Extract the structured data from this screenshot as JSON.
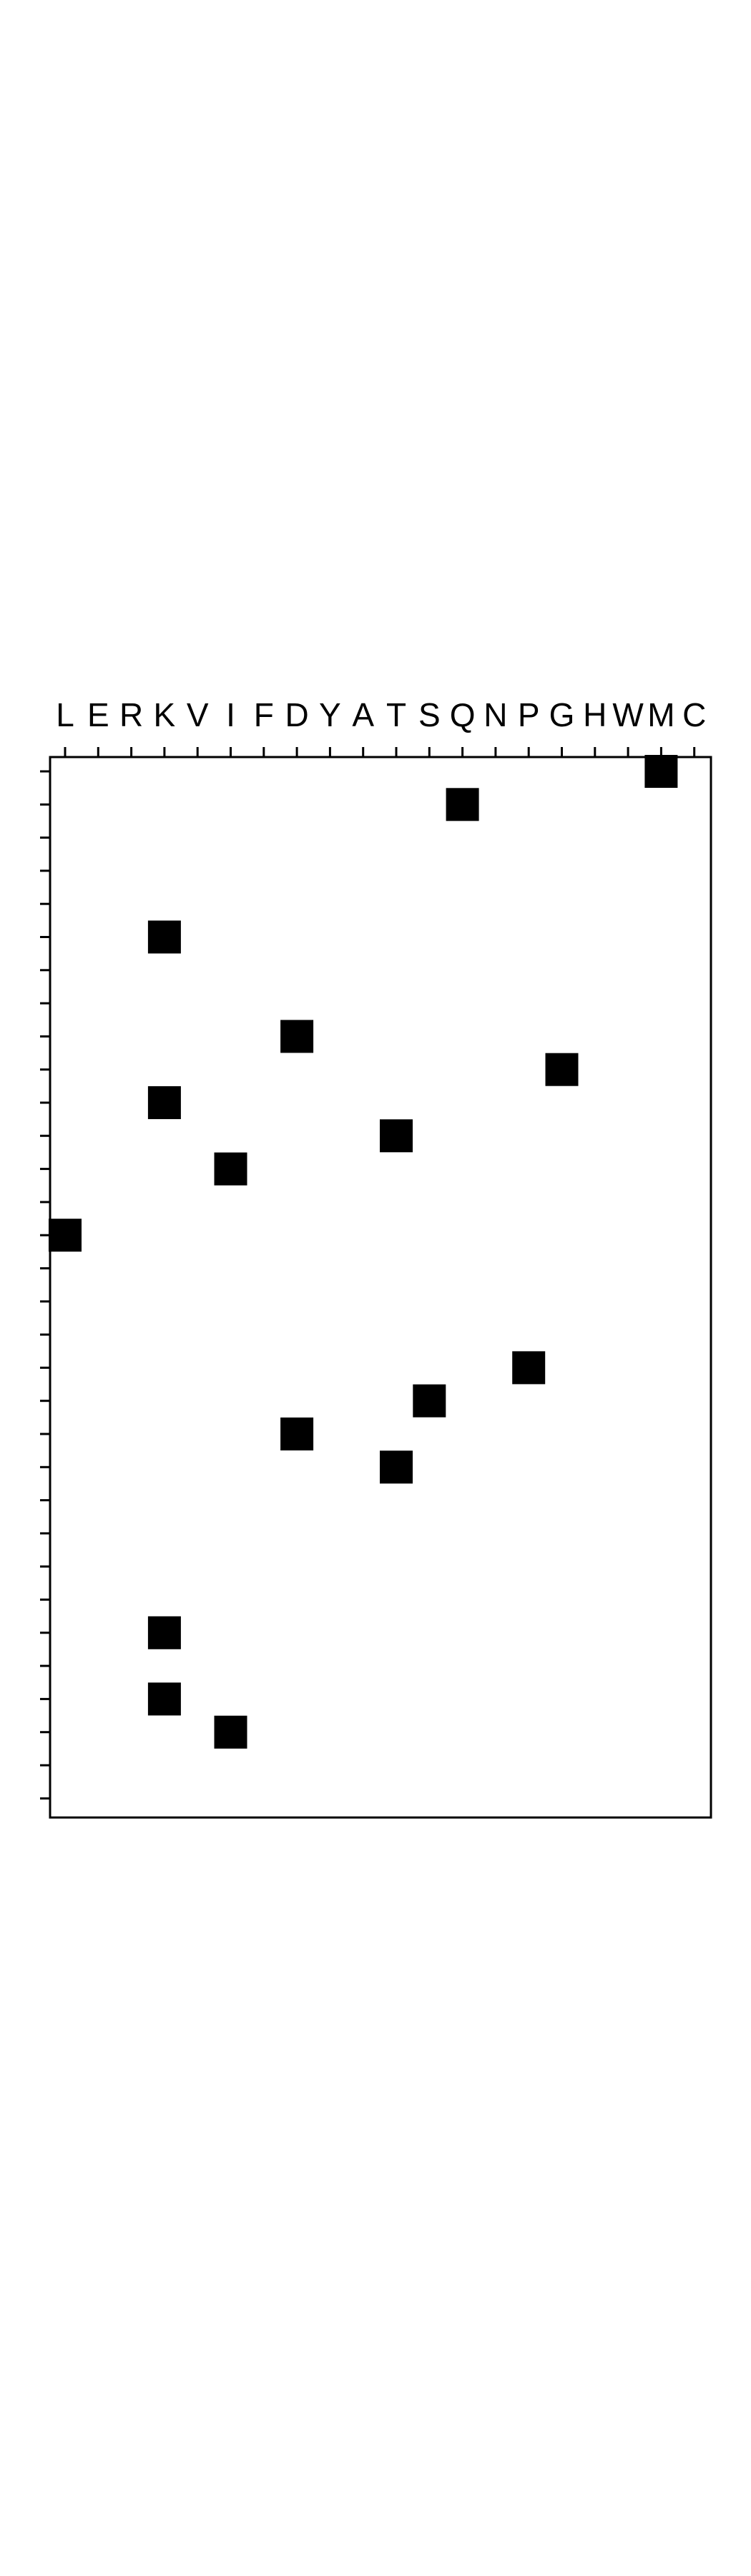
{
  "chart_data": {
    "type": "heatmap",
    "title": "",
    "xlabel": "",
    "ylabel": "",
    "x_categories": [
      "L",
      "E",
      "R",
      "K",
      "V",
      "I",
      "F",
      "D",
      "Y",
      "A",
      "T",
      "S",
      "Q",
      "N",
      "P",
      "G",
      "H",
      "W",
      "M",
      "C"
    ],
    "x_axis_position": "top",
    "row_count": 32,
    "y_tick_labels_shown": false,
    "grid": false,
    "legend": "none",
    "cell_color": "#000000",
    "background_color": "#ffffff",
    "cells": [
      {
        "row": 0,
        "col": "M"
      },
      {
        "row": 1,
        "col": "Q"
      },
      {
        "row": 5,
        "col": "K"
      },
      {
        "row": 8,
        "col": "D"
      },
      {
        "row": 9,
        "col": "G"
      },
      {
        "row": 10,
        "col": "K"
      },
      {
        "row": 11,
        "col": "T"
      },
      {
        "row": 12,
        "col": "I"
      },
      {
        "row": 14,
        "col": "L"
      },
      {
        "row": 18,
        "col": "P"
      },
      {
        "row": 19,
        "col": "S"
      },
      {
        "row": 20,
        "col": "D"
      },
      {
        "row": 21,
        "col": "T"
      },
      {
        "row": 26,
        "col": "K"
      },
      {
        "row": 28,
        "col": "K"
      },
      {
        "row": 29,
        "col": "I"
      }
    ]
  }
}
